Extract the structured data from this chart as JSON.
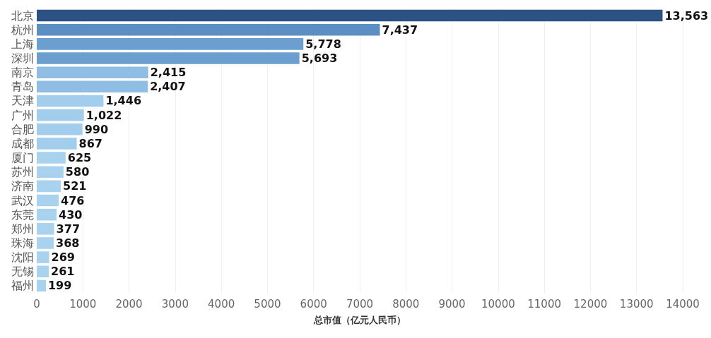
{
  "chart_data": {
    "type": "bar",
    "orientation": "horizontal",
    "xlabel": "总市值（亿元人民币）",
    "categories": [
      "北京",
      "杭州",
      "上海",
      "深圳",
      "南京",
      "青岛",
      "天津",
      "广州",
      "合肥",
      "成都",
      "厦门",
      "苏州",
      "济南",
      "武汉",
      "东莞",
      "郑州",
      "珠海",
      "沈阳",
      "无锡",
      "福州"
    ],
    "values": [
      13563,
      7437,
      5778,
      5693,
      2415,
      2407,
      1446,
      1022,
      990,
      867,
      625,
      580,
      521,
      476,
      430,
      377,
      368,
      269,
      261,
      199
    ],
    "value_labels": [
      "13,563",
      "7,437",
      "5,778",
      "5,693",
      "2,415",
      "2,407",
      "1,446",
      "1,022",
      "990",
      "867",
      "625",
      "580",
      "521",
      "476",
      "430",
      "377",
      "368",
      "269",
      "261",
      "199"
    ],
    "colors": [
      "#2b5282",
      "#5b8fc4",
      "#6a9fd0",
      "#6a9fd0",
      "#8fbde3",
      "#8fbde3",
      "#a3cdec",
      "#a3cdec",
      "#a3cdec",
      "#a3cdec",
      "#a9d2ef",
      "#a9d2ef",
      "#a9d2ef",
      "#a9d2ef",
      "#a9d2ef",
      "#a9d2ef",
      "#a9d2ef",
      "#a9d2ef",
      "#a9d2ef",
      "#a9d2ef"
    ],
    "xlim": [
      0,
      14000
    ],
    "xticks": [
      0,
      1000,
      2000,
      3000,
      4000,
      5000,
      6000,
      7000,
      8000,
      9000,
      10000,
      11000,
      12000,
      13000,
      14000
    ],
    "grid": "x"
  }
}
